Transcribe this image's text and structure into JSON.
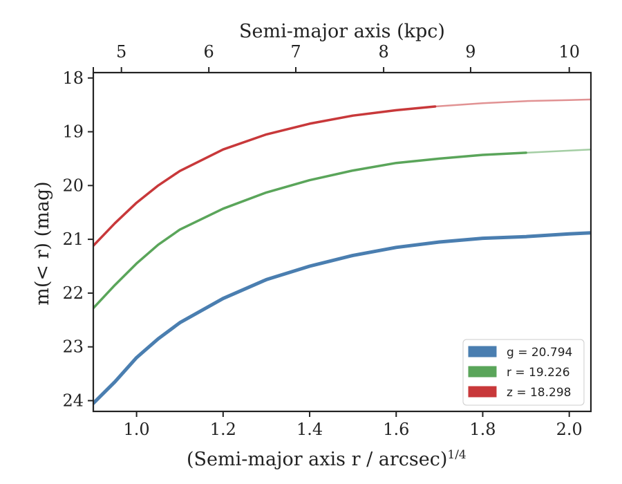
{
  "chart_data": {
    "type": "line",
    "xlabel": "(Semi-major axis r / arcsec)",
    "xlabel_exponent": "1/4",
    "ylabel": "m(< r) (mag)",
    "top_xlabel": "Semi-major axis (kpc)",
    "xlim": [
      0.9,
      2.05
    ],
    "ylim": [
      24.2,
      17.9
    ],
    "y_inverted": true,
    "x_ticks": [
      1.0,
      1.2,
      1.4,
      1.6,
      1.8,
      2.0
    ],
    "x_tick_labels": [
      "1.0",
      "1.2",
      "1.4",
      "1.6",
      "1.8",
      "2.0"
    ],
    "y_ticks": [
      18,
      19,
      20,
      21,
      22,
      23,
      24
    ],
    "y_tick_labels": [
      "18",
      "19",
      "20",
      "21",
      "22",
      "23",
      "24"
    ],
    "top_ticks": [
      4.5,
      5,
      6,
      7,
      8,
      9,
      10
    ],
    "top_tick_labels": [
      "",
      "5",
      "6",
      "7",
      "8",
      "9",
      "10"
    ],
    "top_tick_x_positions": [
      0.9,
      0.965,
      1.167,
      1.368,
      1.571,
      1.772,
      2.0
    ],
    "legend_position": "lower-right",
    "grid": false,
    "series": [
      {
        "key": "g",
        "name": "g = 20.794",
        "color": "#4a7eb0",
        "solid_x": [
          0.9,
          0.95,
          1.0,
          1.05,
          1.1,
          1.2,
          1.3,
          1.4,
          1.5,
          1.6,
          1.7,
          1.8,
          1.9,
          2.0,
          2.05
        ],
        "solid_y": [
          24.05,
          23.65,
          23.2,
          22.85,
          22.55,
          22.1,
          21.75,
          21.5,
          21.3,
          21.15,
          21.05,
          20.98,
          20.95,
          20.9,
          20.88
        ],
        "faded_x": [],
        "faded_y": []
      },
      {
        "key": "r",
        "name": "r = 19.226",
        "color": "#5aa55a",
        "solid_x": [
          0.9,
          0.95,
          1.0,
          1.05,
          1.1,
          1.2,
          1.3,
          1.4,
          1.5,
          1.6,
          1.7,
          1.8,
          1.9
        ],
        "solid_y": [
          22.28,
          21.85,
          21.45,
          21.1,
          20.82,
          20.43,
          20.13,
          19.9,
          19.72,
          19.58,
          19.5,
          19.43,
          19.39
        ],
        "faded_x": [
          1.9,
          2.05
        ],
        "faded_y": [
          19.39,
          19.33
        ]
      },
      {
        "key": "z",
        "name": "z = 18.298",
        "color": "#c8383a",
        "solid_x": [
          0.9,
          0.95,
          1.0,
          1.05,
          1.1,
          1.2,
          1.3,
          1.4,
          1.5,
          1.6,
          1.69
        ],
        "solid_y": [
          21.12,
          20.7,
          20.32,
          20.0,
          19.73,
          19.33,
          19.05,
          18.85,
          18.7,
          18.6,
          18.53
        ],
        "faded_x": [
          1.69,
          1.8,
          1.9,
          2.0,
          2.05
        ],
        "faded_y": [
          18.53,
          18.47,
          18.43,
          18.41,
          18.4
        ]
      }
    ]
  }
}
